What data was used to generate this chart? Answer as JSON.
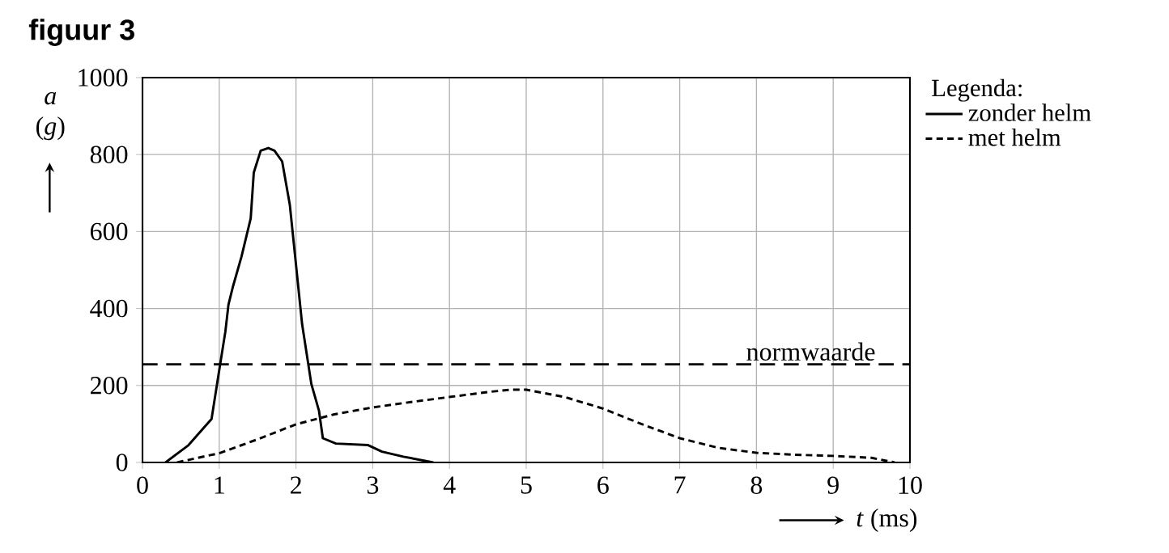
{
  "chart_data": {
    "type": "line",
    "title": "figuur 3",
    "xlabel": "*t* (ms)",
    "ylabel": "*a* (*g*)",
    "legend_title": "Legenda:",
    "xlim": [
      0,
      10
    ],
    "ylim": [
      0,
      1000
    ],
    "xticks": [
      0,
      1,
      2,
      3,
      4,
      5,
      6,
      7,
      8,
      9,
      10
    ],
    "yticks": [
      0,
      200,
      400,
      600,
      800,
      1000
    ],
    "grid": true,
    "legend": "top right",
    "series": [
      {
        "name": "zonder helm",
        "color": "#000000",
        "line_style": "solid",
        "x": [
          0.3,
          0.6,
          0.9,
          1.0,
          1.08,
          1.12,
          1.18,
          1.29,
          1.41,
          1.45,
          1.54,
          1.64,
          1.72,
          1.82,
          1.92,
          2.08,
          2.2,
          2.3,
          2.35,
          2.52,
          2.94,
          3.12,
          3.4,
          3.79
        ],
        "values": [
          0,
          45,
          113,
          240,
          340,
          410,
          458,
          535,
          634,
          753,
          810,
          817,
          810,
          782,
          669,
          359,
          204,
          134,
          63,
          49,
          45,
          28,
          15,
          0
        ]
      },
      {
        "name": "met helm",
        "color": "#000000",
        "line_style": "dashed",
        "x": [
          0.45,
          1.0,
          1.5,
          2.0,
          2.5,
          3.0,
          3.5,
          4.0,
          4.5,
          4.8,
          5.0,
          5.5,
          6.0,
          6.5,
          7.0,
          7.5,
          8.0,
          8.5,
          9.0,
          9.5,
          9.8
        ],
        "values": [
          0,
          24,
          60,
          99,
          125,
          143,
          157,
          170,
          183,
          189,
          189,
          170,
          140,
          100,
          63,
          38,
          25,
          20,
          17,
          12,
          0
        ]
      }
    ],
    "ref_lines": [
      {
        "axis": "y",
        "value": 255,
        "label": "normwaarde",
        "line_style": "dashed",
        "color": "#000000"
      }
    ]
  }
}
